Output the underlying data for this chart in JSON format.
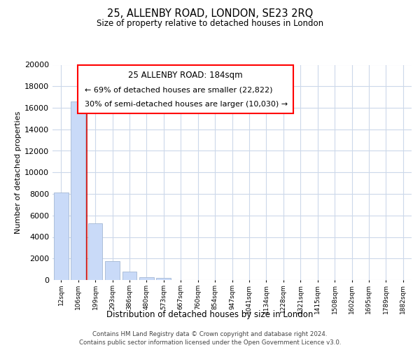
{
  "title": "25, ALLENBY ROAD, LONDON, SE23 2RQ",
  "subtitle": "Size of property relative to detached houses in London",
  "xlabel": "Distribution of detached houses by size in London",
  "ylabel": "Number of detached properties",
  "bar_labels": [
    "12sqm",
    "106sqm",
    "199sqm",
    "293sqm",
    "386sqm",
    "480sqm",
    "573sqm",
    "667sqm",
    "760sqm",
    "854sqm",
    "947sqm",
    "1041sqm",
    "1134sqm",
    "1228sqm",
    "1321sqm",
    "1415sqm",
    "1508sqm",
    "1602sqm",
    "1695sqm",
    "1789sqm",
    "1882sqm"
  ],
  "bar_values": [
    8100,
    16600,
    5300,
    1750,
    800,
    280,
    200,
    0,
    0,
    0,
    0,
    0,
    0,
    0,
    0,
    0,
    0,
    0,
    0,
    0,
    0
  ],
  "bar_color": "#c9daf8",
  "bar_edge_color": "#a4b8d4",
  "vline_color": "#cc0000",
  "ann_line1": "25 ALLENBY ROAD: 184sqm",
  "ann_line2": "← 69% of detached houses are smaller (22,822)",
  "ann_line3": "30% of semi-detached houses are larger (10,030) →",
  "ylim": [
    0,
    20000
  ],
  "yticks": [
    0,
    2000,
    4000,
    6000,
    8000,
    10000,
    12000,
    14000,
    16000,
    18000,
    20000
  ],
  "footer_line1": "Contains HM Land Registry data © Crown copyright and database right 2024.",
  "footer_line2": "Contains public sector information licensed under the Open Government Licence v3.0.",
  "bg_color": "#ffffff",
  "grid_color": "#ccd8ea"
}
